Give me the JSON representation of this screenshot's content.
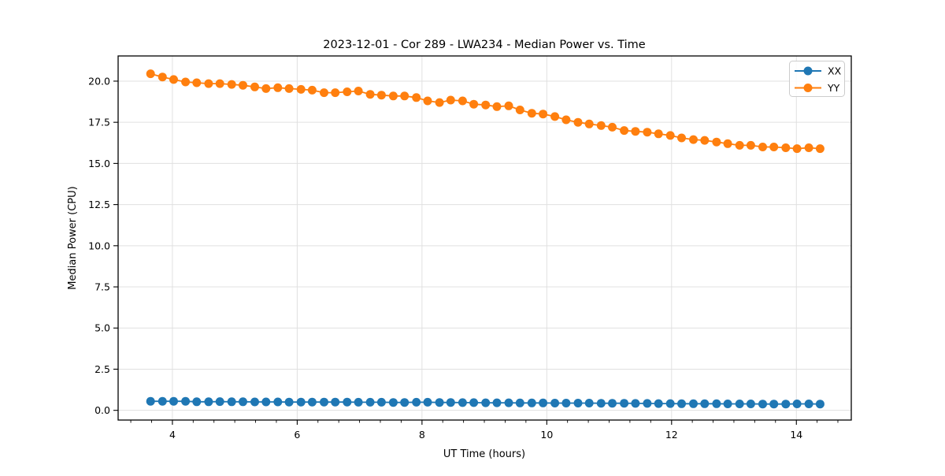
{
  "chart_data": {
    "type": "line",
    "title": "2023-12-01 - Cor 289 - LWA234 - Median Power vs. Time",
    "xlabel": "UT Time (hours)",
    "ylabel": "Median Power (CPU)",
    "xlim": [
      3.13,
      14.88
    ],
    "ylim": [
      -0.59,
      21.53
    ],
    "x_ticks": [
      4,
      6,
      8,
      10,
      12,
      14
    ],
    "x_minor_tick_step": 0.3333,
    "y_ticks": [
      0.0,
      2.5,
      5.0,
      7.5,
      10.0,
      12.5,
      15.0,
      17.5,
      20.0
    ],
    "grid": true,
    "grid_color": "#e0e0e0",
    "spine_color": "#000000",
    "legend_position": "upper right",
    "x": [
      3.65,
      3.84,
      4.02,
      4.21,
      4.39,
      4.58,
      4.76,
      4.95,
      5.13,
      5.32,
      5.5,
      5.69,
      5.87,
      6.06,
      6.24,
      6.43,
      6.61,
      6.8,
      6.98,
      7.17,
      7.35,
      7.54,
      7.72,
      7.91,
      8.09,
      8.28,
      8.46,
      8.65,
      8.83,
      9.02,
      9.2,
      9.39,
      9.57,
      9.76,
      9.94,
      10.13,
      10.31,
      10.5,
      10.68,
      10.87,
      11.05,
      11.24,
      11.42,
      11.61,
      11.79,
      11.98,
      12.16,
      12.35,
      12.53,
      12.72,
      12.9,
      13.09,
      13.27,
      13.46,
      13.64,
      13.83,
      14.01,
      14.2,
      14.38
    ],
    "series": [
      {
        "name": "XX",
        "color": "#1f77b4",
        "values": [
          0.55,
          0.55,
          0.55,
          0.55,
          0.52,
          0.52,
          0.53,
          0.52,
          0.52,
          0.51,
          0.51,
          0.51,
          0.5,
          0.5,
          0.5,
          0.5,
          0.5,
          0.5,
          0.49,
          0.49,
          0.49,
          0.48,
          0.48,
          0.49,
          0.49,
          0.48,
          0.48,
          0.47,
          0.47,
          0.46,
          0.46,
          0.46,
          0.45,
          0.45,
          0.45,
          0.44,
          0.44,
          0.44,
          0.44,
          0.43,
          0.43,
          0.43,
          0.42,
          0.42,
          0.41,
          0.41,
          0.4,
          0.4,
          0.4,
          0.4,
          0.39,
          0.39,
          0.39,
          0.38,
          0.38,
          0.38,
          0.39,
          0.39,
          0.38
        ]
      },
      {
        "name": "YY",
        "color": "#ff7f0e",
        "values": [
          20.45,
          20.25,
          20.1,
          19.95,
          19.9,
          19.85,
          19.85,
          19.8,
          19.75,
          19.65,
          19.55,
          19.6,
          19.55,
          19.5,
          19.45,
          19.3,
          19.3,
          19.35,
          19.4,
          19.2,
          19.15,
          19.1,
          19.1,
          19.0,
          18.8,
          18.7,
          18.85,
          18.8,
          18.6,
          18.55,
          18.45,
          18.5,
          18.25,
          18.05,
          18.0,
          17.85,
          17.65,
          17.5,
          17.4,
          17.3,
          17.2,
          17.0,
          16.95,
          16.9,
          16.8,
          16.7,
          16.55,
          16.45,
          16.4,
          16.3,
          16.2,
          16.1,
          16.1,
          16.0,
          16.0,
          15.95,
          15.9,
          15.95,
          15.9
        ]
      }
    ]
  }
}
